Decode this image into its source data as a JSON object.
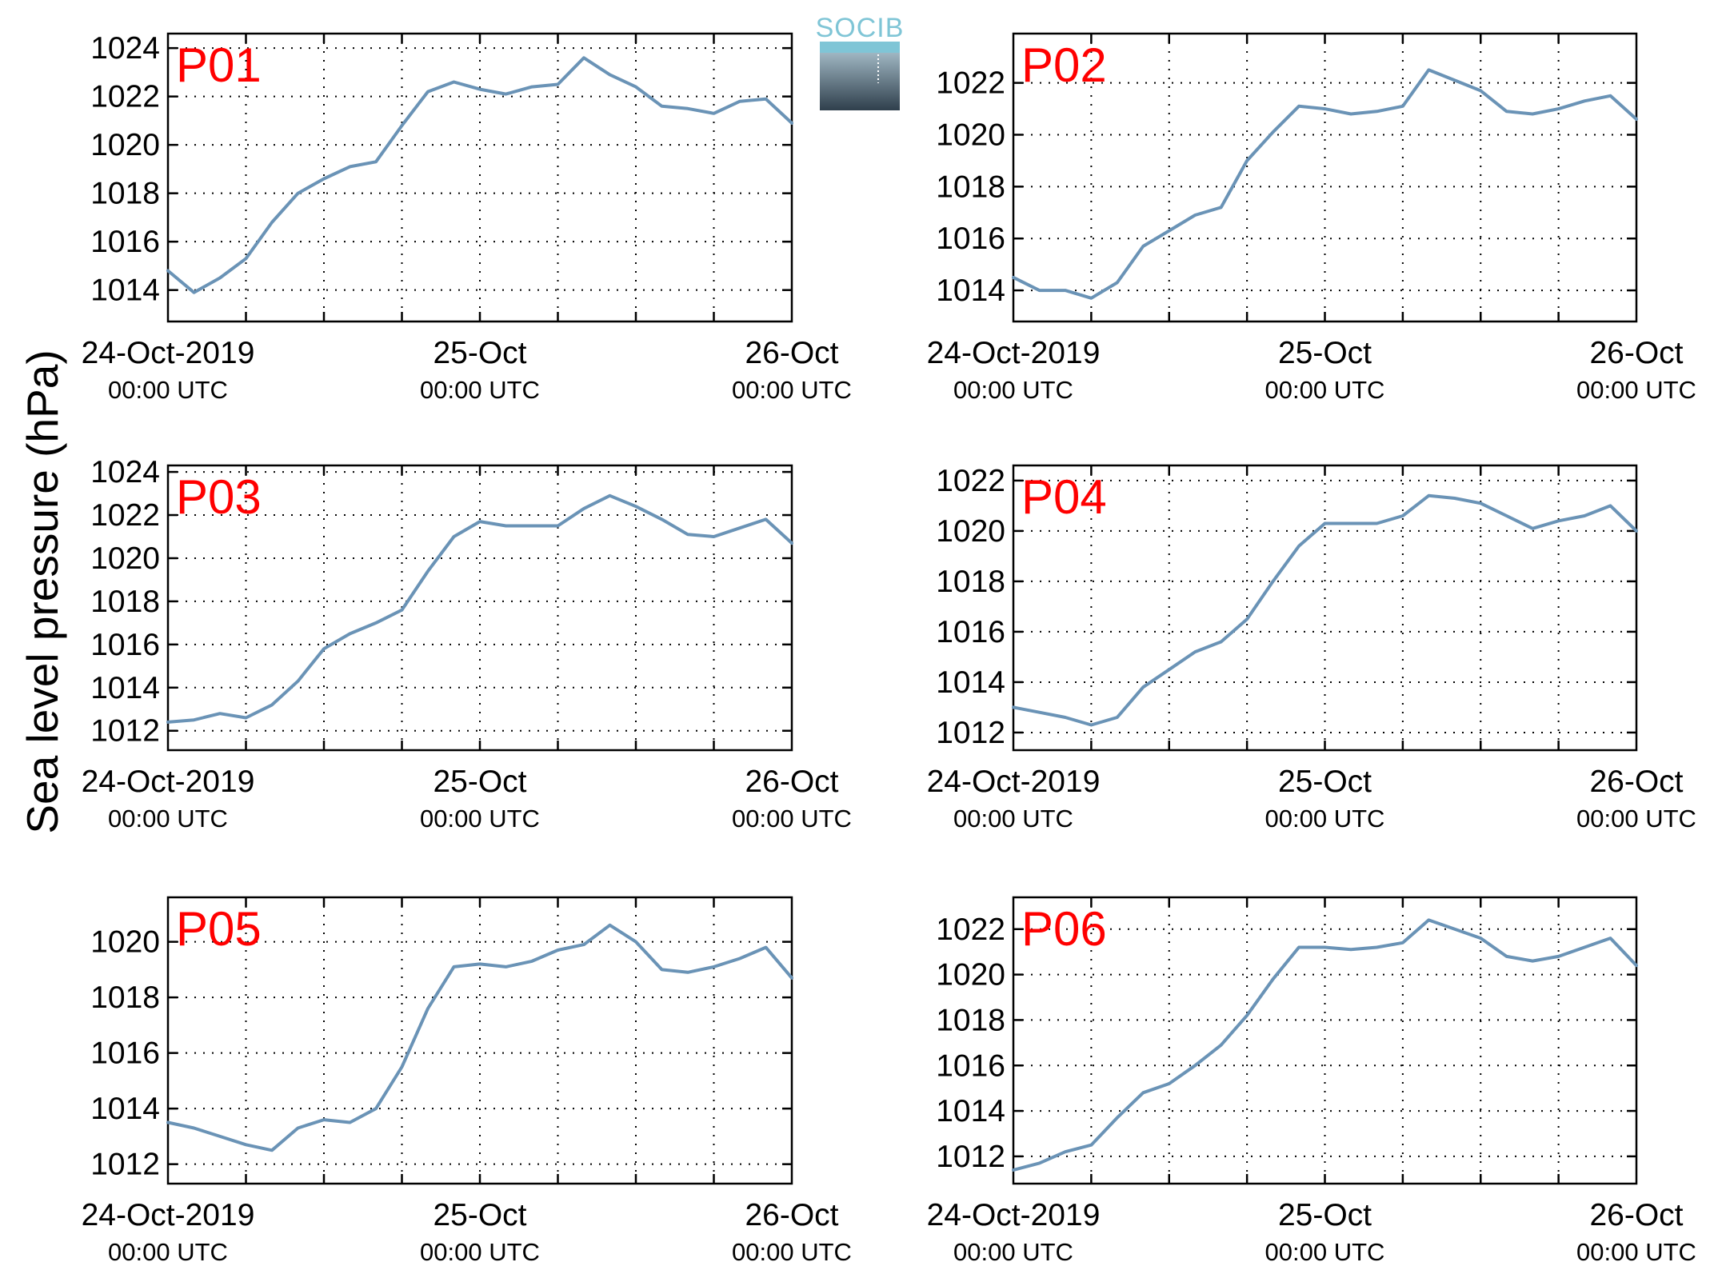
{
  "figure": {
    "ylabel": "Sea level pressure (hPa)",
    "logo_text": "SOCIB",
    "colors": {
      "series": "#6a93b6",
      "panel_tag": "#ff0000",
      "logo_accent": "#7fc5d6",
      "logo_dark": "#3c4e5c"
    }
  },
  "chart_data": [
    {
      "type": "line",
      "title": "P01",
      "xlim": [
        "24-Oct-2019 00:00 UTC",
        "26-Oct-2019 00:00 UTC"
      ],
      "x_tick_labels": [
        [
          "24-Oct-2019",
          "00:00 UTC"
        ],
        [
          "25-Oct",
          "00:00 UTC"
        ],
        [
          "26-Oct",
          "00:00 UTC"
        ]
      ],
      "ylim": [
        1012.7,
        1024.6
      ],
      "yticks": [
        1014,
        1016,
        1018,
        1020,
        1022,
        1024
      ],
      "grid": true,
      "x_hours": [
        0,
        2,
        4,
        6,
        8,
        10,
        12,
        14,
        16,
        18,
        20,
        22,
        24,
        26,
        28,
        30,
        32,
        34,
        36,
        38,
        40,
        42,
        44,
        46,
        48
      ],
      "values": [
        1014.8,
        1013.9,
        1014.5,
        1015.3,
        1016.8,
        1018.0,
        1018.6,
        1019.1,
        1019.3,
        1020.8,
        1022.2,
        1022.6,
        1022.3,
        1022.1,
        1022.4,
        1022.5,
        1023.6,
        1022.9,
        1022.4,
        1021.6,
        1021.5,
        1021.3,
        1021.8,
        1021.9,
        1020.9
      ]
    },
    {
      "type": "line",
      "title": "P02",
      "xlim": [
        "24-Oct-2019 00:00 UTC",
        "26-Oct-2019 00:00 UTC"
      ],
      "x_tick_labels": [
        [
          "24-Oct-2019",
          "00:00 UTC"
        ],
        [
          "25-Oct",
          "00:00 UTC"
        ],
        [
          "26-Oct",
          "00:00 UTC"
        ]
      ],
      "ylim": [
        1012.8,
        1023.9
      ],
      "yticks": [
        1014,
        1016,
        1018,
        1020,
        1022
      ],
      "grid": true,
      "x_hours": [
        0,
        2,
        4,
        6,
        8,
        10,
        12,
        14,
        16,
        18,
        20,
        22,
        24,
        26,
        28,
        30,
        32,
        34,
        36,
        38,
        40,
        42,
        44,
        46,
        48
      ],
      "values": [
        1014.5,
        1014.0,
        1014.0,
        1013.7,
        1014.3,
        1015.7,
        1016.3,
        1016.9,
        1017.2,
        1019.0,
        1020.1,
        1021.1,
        1021.0,
        1020.8,
        1020.9,
        1021.1,
        1022.5,
        1022.1,
        1021.7,
        1020.9,
        1020.8,
        1021.0,
        1021.3,
        1021.5,
        1020.6
      ]
    },
    {
      "type": "line",
      "title": "P03",
      "xlim": [
        "24-Oct-2019 00:00 UTC",
        "26-Oct-2019 00:00 UTC"
      ],
      "x_tick_labels": [
        [
          "24-Oct-2019",
          "00:00 UTC"
        ],
        [
          "25-Oct",
          "00:00 UTC"
        ],
        [
          "26-Oct",
          "00:00 UTC"
        ]
      ],
      "ylim": [
        1011.1,
        1024.3
      ],
      "yticks": [
        1012,
        1014,
        1016,
        1018,
        1020,
        1022,
        1024
      ],
      "grid": true,
      "x_hours": [
        0,
        2,
        4,
        6,
        8,
        10,
        12,
        14,
        16,
        18,
        20,
        22,
        24,
        26,
        28,
        30,
        32,
        34,
        36,
        38,
        40,
        42,
        44,
        46,
        48
      ],
      "values": [
        1012.4,
        1012.5,
        1012.8,
        1012.6,
        1013.2,
        1014.3,
        1015.8,
        1016.5,
        1017.0,
        1017.6,
        1019.4,
        1021.0,
        1021.7,
        1021.5,
        1021.5,
        1021.5,
        1022.3,
        1022.9,
        1022.4,
        1021.8,
        1021.1,
        1021.0,
        1021.4,
        1021.8,
        1020.7
      ]
    },
    {
      "type": "line",
      "title": "P04",
      "xlim": [
        "24-Oct-2019 00:00 UTC",
        "26-Oct-2019 00:00 UTC"
      ],
      "x_tick_labels": [
        [
          "24-Oct-2019",
          "00:00 UTC"
        ],
        [
          "25-Oct",
          "00:00 UTC"
        ],
        [
          "26-Oct",
          "00:00 UTC"
        ]
      ],
      "ylim": [
        1011.3,
        1022.6
      ],
      "yticks": [
        1012,
        1014,
        1016,
        1018,
        1020,
        1022
      ],
      "grid": true,
      "x_hours": [
        0,
        2,
        4,
        6,
        8,
        10,
        12,
        14,
        16,
        18,
        20,
        22,
        24,
        26,
        28,
        30,
        32,
        34,
        36,
        38,
        40,
        42,
        44,
        46,
        48
      ],
      "values": [
        1013.0,
        1012.8,
        1012.6,
        1012.3,
        1012.6,
        1013.8,
        1014.5,
        1015.2,
        1015.6,
        1016.5,
        1018.0,
        1019.4,
        1020.3,
        1020.3,
        1020.3,
        1020.6,
        1021.4,
        1021.3,
        1021.1,
        1020.6,
        1020.1,
        1020.4,
        1020.6,
        1021.0,
        1020.0
      ]
    },
    {
      "type": "line",
      "title": "P05",
      "xlim": [
        "24-Oct-2019 00:00 UTC",
        "26-Oct-2019 00:00 UTC"
      ],
      "x_tick_labels": [
        [
          "24-Oct-2019",
          "00:00 UTC"
        ],
        [
          "25-Oct",
          "00:00 UTC"
        ],
        [
          "26-Oct",
          "00:00 UTC"
        ]
      ],
      "ylim": [
        1011.3,
        1021.6
      ],
      "yticks": [
        1012,
        1014,
        1016,
        1018,
        1020
      ],
      "grid": true,
      "x_hours": [
        0,
        2,
        4,
        6,
        8,
        10,
        12,
        14,
        16,
        18,
        20,
        22,
        24,
        26,
        28,
        30,
        32,
        34,
        36,
        38,
        40,
        42,
        44,
        46,
        48
      ],
      "values": [
        1013.5,
        1013.3,
        1013.0,
        1012.7,
        1012.5,
        1013.3,
        1013.6,
        1013.5,
        1014.0,
        1015.5,
        1017.6,
        1019.1,
        1019.2,
        1019.1,
        1019.3,
        1019.7,
        1019.9,
        1020.6,
        1020.0,
        1019.0,
        1018.9,
        1019.1,
        1019.4,
        1019.8,
        1018.7
      ]
    },
    {
      "type": "line",
      "title": "P06",
      "xlim": [
        "24-Oct-2019 00:00 UTC",
        "26-Oct-2019 00:00 UTC"
      ],
      "x_tick_labels": [
        [
          "24-Oct-2019",
          "00:00 UTC"
        ],
        [
          "25-Oct",
          "00:00 UTC"
        ],
        [
          "26-Oct",
          "00:00 UTC"
        ]
      ],
      "ylim": [
        1010.8,
        1023.4
      ],
      "yticks": [
        1012,
        1014,
        1016,
        1018,
        1020,
        1022
      ],
      "grid": true,
      "x_hours": [
        0,
        2,
        4,
        6,
        8,
        10,
        12,
        14,
        16,
        18,
        20,
        22,
        24,
        26,
        28,
        30,
        32,
        34,
        36,
        38,
        40,
        42,
        44,
        46,
        48
      ],
      "values": [
        1011.4,
        1011.7,
        1012.2,
        1012.5,
        1013.7,
        1014.8,
        1015.2,
        1016.0,
        1016.9,
        1018.2,
        1019.8,
        1021.2,
        1021.2,
        1021.1,
        1021.2,
        1021.4,
        1022.4,
        1022.0,
        1021.6,
        1020.8,
        1020.6,
        1020.8,
        1021.2,
        1021.6,
        1020.4
      ]
    }
  ]
}
